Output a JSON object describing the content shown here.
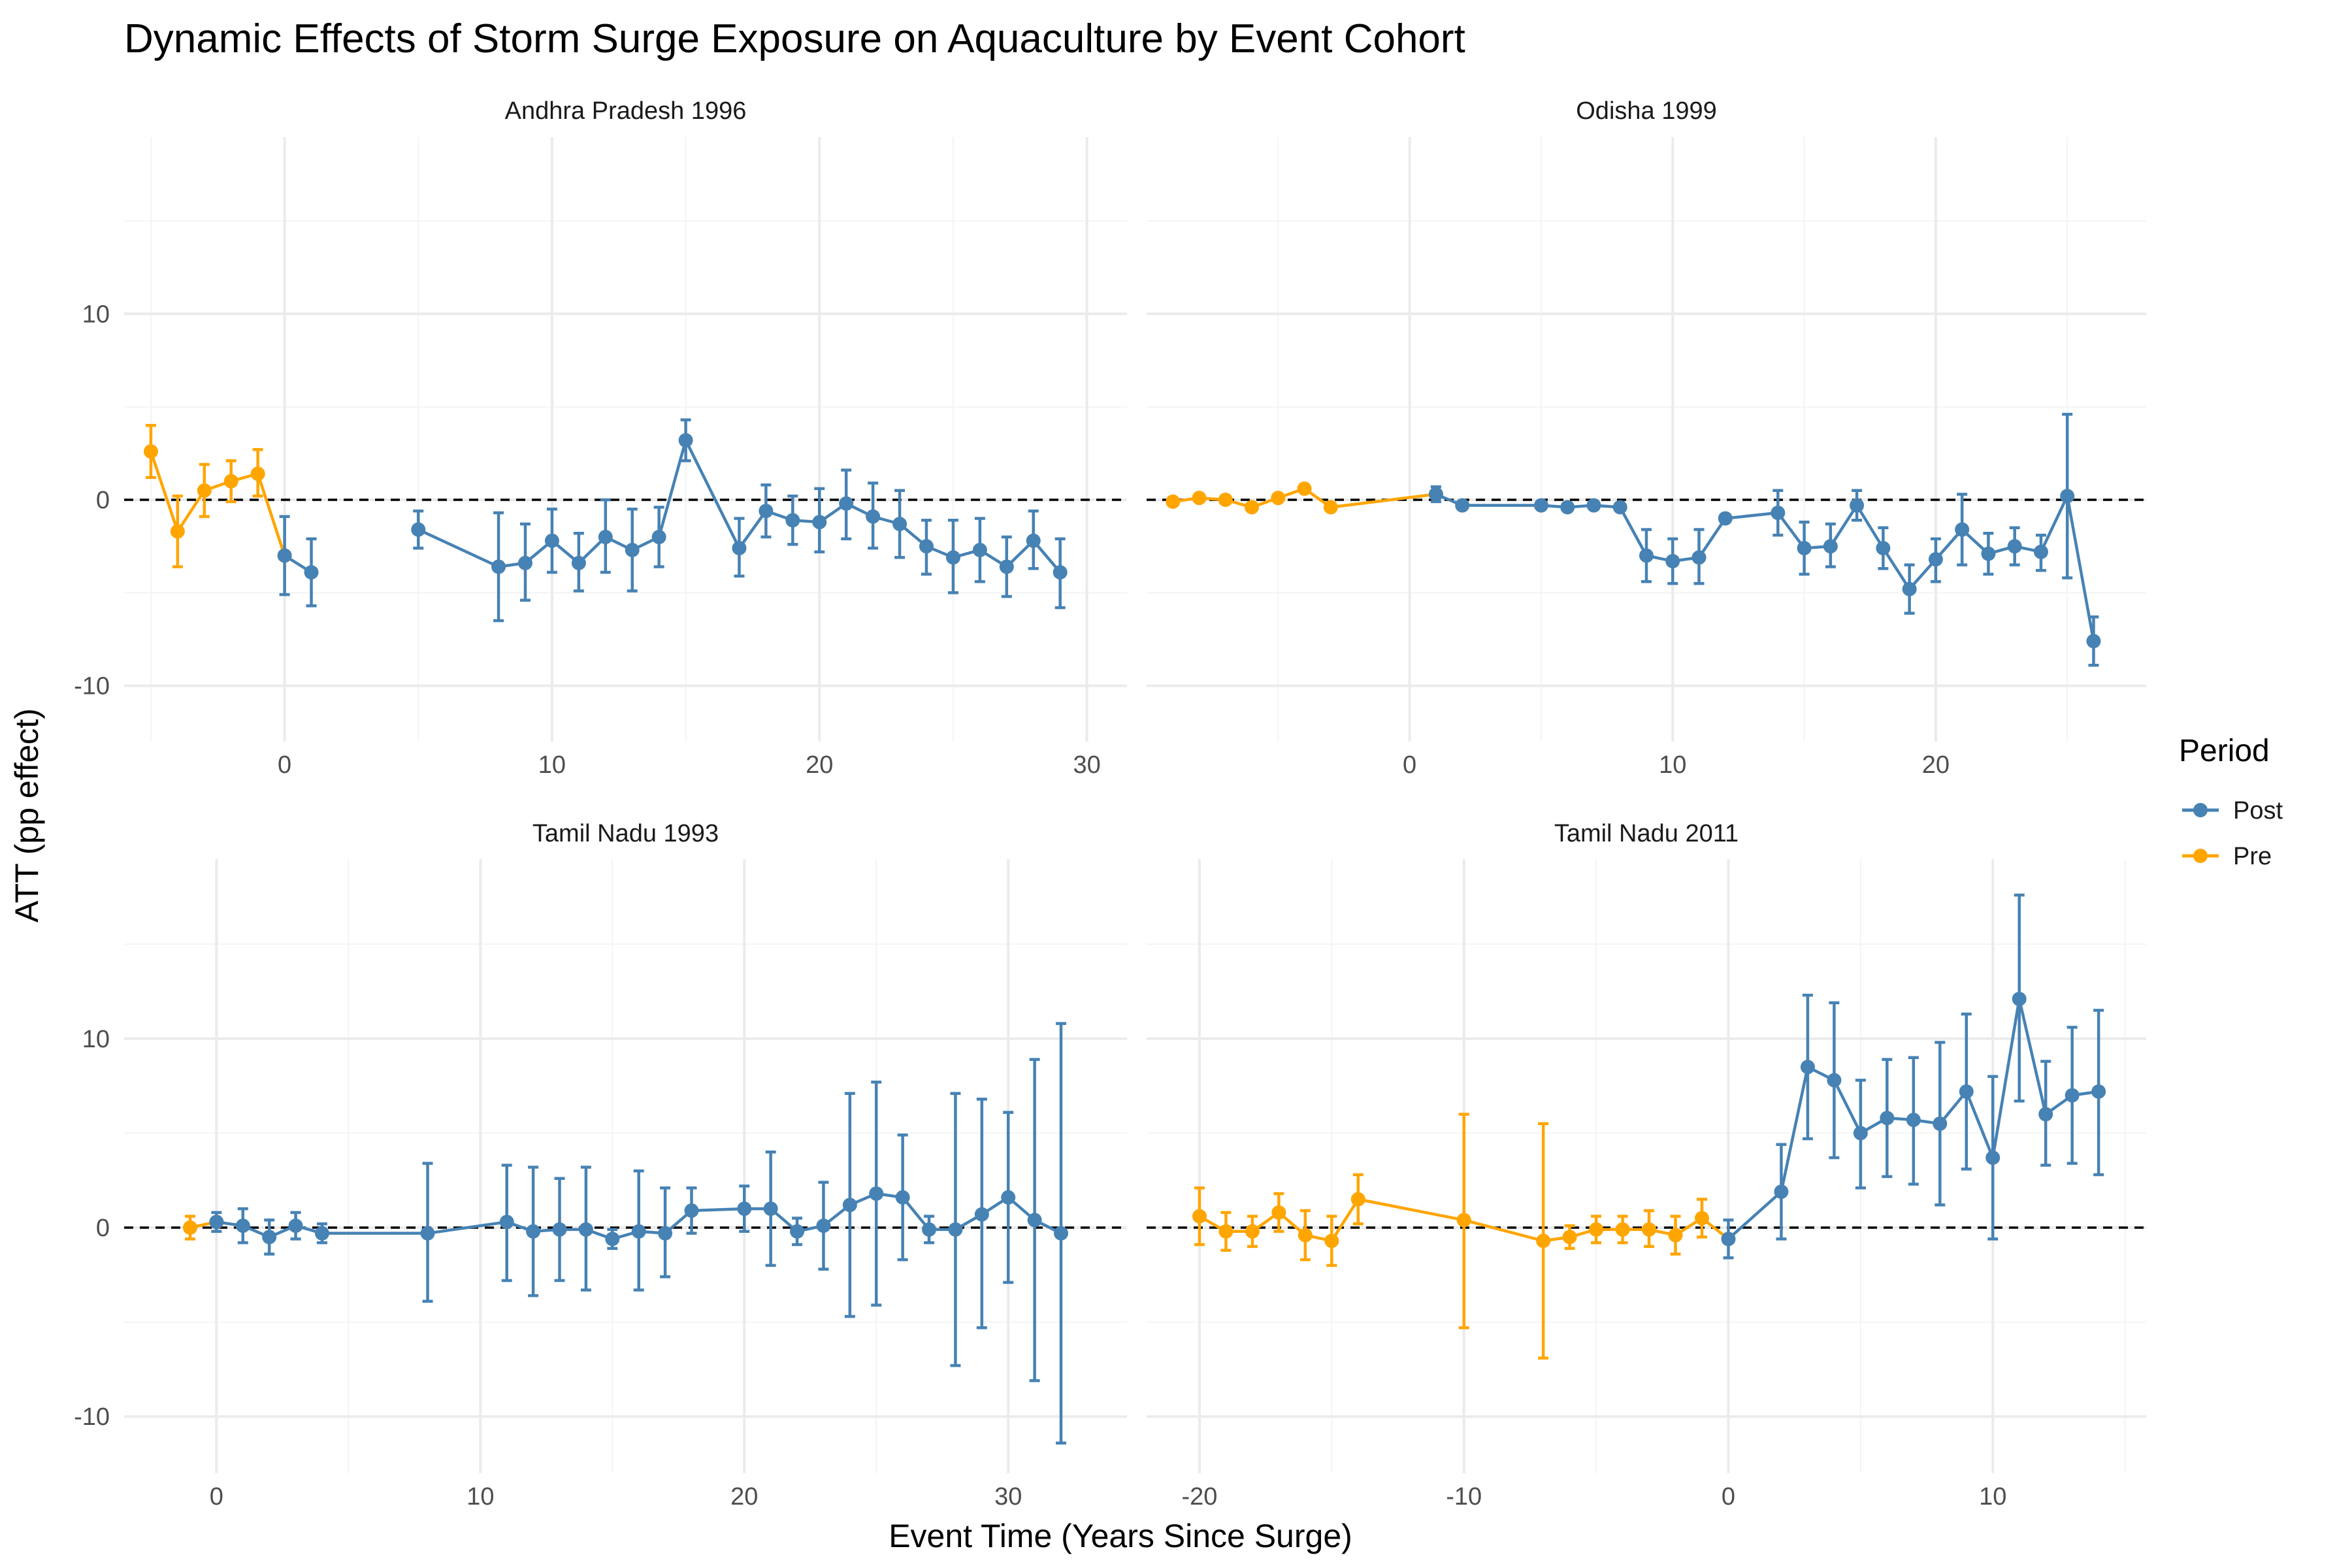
{
  "chart_data": {
    "type": "line",
    "title": "Dynamic Effects of Storm Surge Exposure on Aquaculture by Event Cohort",
    "xlabel": "Event Time (Years Since Surge)",
    "ylabel": "ATT (pp effect)",
    "legend": {
      "title": "Period",
      "placement": "right",
      "entries": [
        {
          "label": "Post",
          "color": "#4682B4"
        },
        {
          "label": "Pre",
          "color": "#FFA500"
        }
      ]
    },
    "reference_line_y": 0,
    "grid": true,
    "ylim": [
      -13,
      19.5
    ],
    "y_ticks": [
      -10,
      0,
      10
    ],
    "y_tick_labels": [
      "-10",
      "0",
      "10"
    ],
    "panels": [
      {
        "title": "Andhra Pradesh 1996",
        "xlim": [
          -6,
          31.5
        ],
        "x_ticks": [
          0,
          10,
          20,
          30
        ],
        "x_tick_labels": [
          "0",
          "10",
          "20",
          "30"
        ],
        "series": [
          {
            "name": "Pre",
            "points": [
              {
                "x": -5,
                "y": 2.6,
                "lo": 1.2,
                "hi": 4.0
              },
              {
                "x": -4,
                "y": -1.7,
                "lo": -3.6,
                "hi": 0.2
              },
              {
                "x": -3,
                "y": 0.5,
                "lo": -0.9,
                "hi": 1.9
              },
              {
                "x": -2,
                "y": 1.0,
                "lo": -0.1,
                "hi": 2.1
              },
              {
                "x": -1,
                "y": 1.4,
                "lo": 0.2,
                "hi": 2.7
              },
              {
                "x": 0,
                "y": -3.0,
                "lo": null,
                "hi": null
              }
            ]
          },
          {
            "name": "Post",
            "segments": [
              [
                {
                  "x": 0,
                  "y": -3.0,
                  "lo": -5.1,
                  "hi": -0.9
                },
                {
                  "x": 1,
                  "y": -3.9,
                  "lo": -5.7,
                  "hi": -2.1
                }
              ],
              [
                {
                  "x": 5,
                  "y": -1.6,
                  "lo": -2.6,
                  "hi": -0.6
                },
                {
                  "x": 8,
                  "y": -3.6,
                  "lo": -6.5,
                  "hi": -0.7
                },
                {
                  "x": 9,
                  "y": -3.4,
                  "lo": -5.4,
                  "hi": -1.3
                },
                {
                  "x": 10,
                  "y": -2.2,
                  "lo": -3.9,
                  "hi": -0.5
                },
                {
                  "x": 11,
                  "y": -3.4,
                  "lo": -4.9,
                  "hi": -1.8
                },
                {
                  "x": 12,
                  "y": -2.0,
                  "lo": -3.9,
                  "hi": 0.0
                },
                {
                  "x": 13,
                  "y": -2.7,
                  "lo": -4.9,
                  "hi": -0.5
                },
                {
                  "x": 14,
                  "y": -2.0,
                  "lo": -3.6,
                  "hi": -0.4
                },
                {
                  "x": 15,
                  "y": 3.2,
                  "lo": 2.1,
                  "hi": 4.3
                },
                {
                  "x": 17,
                  "y": -2.6,
                  "lo": -4.1,
                  "hi": -1.0
                },
                {
                  "x": 18,
                  "y": -0.6,
                  "lo": -2.0,
                  "hi": 0.8
                },
                {
                  "x": 19,
                  "y": -1.1,
                  "lo": -2.4,
                  "hi": 0.2
                },
                {
                  "x": 20,
                  "y": -1.2,
                  "lo": -2.8,
                  "hi": 0.6
                },
                {
                  "x": 21,
                  "y": -0.2,
                  "lo": -2.1,
                  "hi": 1.6
                },
                {
                  "x": 22,
                  "y": -0.9,
                  "lo": -2.6,
                  "hi": 0.9
                },
                {
                  "x": 23,
                  "y": -1.3,
                  "lo": -3.1,
                  "hi": 0.5
                },
                {
                  "x": 24,
                  "y": -2.5,
                  "lo": -4.0,
                  "hi": -1.1
                },
                {
                  "x": 25,
                  "y": -3.1,
                  "lo": -5.0,
                  "hi": -1.1
                },
                {
                  "x": 26,
                  "y": -2.7,
                  "lo": -4.4,
                  "hi": -1.0
                },
                {
                  "x": 27,
                  "y": -3.6,
                  "lo": -5.2,
                  "hi": -2.0
                },
                {
                  "x": 28,
                  "y": -2.2,
                  "lo": -3.7,
                  "hi": -0.6
                },
                {
                  "x": 29,
                  "y": -3.9,
                  "lo": -5.8,
                  "hi": -2.1
                }
              ]
            ]
          }
        ]
      },
      {
        "title": "Odisha 1999",
        "xlim": [
          -10,
          28
        ],
        "x_ticks": [
          0,
          10,
          20
        ],
        "x_tick_labels": [
          "0",
          "10",
          "20"
        ],
        "series": [
          {
            "name": "Pre",
            "points": [
              {
                "x": -9,
                "y": -0.1,
                "lo": null,
                "hi": null
              },
              {
                "x": -8,
                "y": 0.1,
                "lo": null,
                "hi": null
              },
              {
                "x": -7,
                "y": 0.0,
                "lo": null,
                "hi": null
              },
              {
                "x": -6,
                "y": -0.4,
                "lo": null,
                "hi": null
              },
              {
                "x": -5,
                "y": 0.1,
                "lo": null,
                "hi": null
              },
              {
                "x": -4,
                "y": 0.6,
                "lo": null,
                "hi": null
              },
              {
                "x": -3,
                "y": -0.4,
                "lo": null,
                "hi": null
              },
              {
                "x": 1,
                "y": 0.3,
                "lo": null,
                "hi": null
              }
            ]
          },
          {
            "name": "Post",
            "points": [
              {
                "x": 1,
                "y": 0.3,
                "lo": -0.1,
                "hi": 0.7
              },
              {
                "x": 2,
                "y": -0.3,
                "lo": null,
                "hi": null
              },
              {
                "x": 5,
                "y": -0.3,
                "lo": null,
                "hi": null
              },
              {
                "x": 6,
                "y": -0.4,
                "lo": null,
                "hi": null
              },
              {
                "x": 7,
                "y": -0.3,
                "lo": null,
                "hi": null
              },
              {
                "x": 8,
                "y": -0.4,
                "lo": null,
                "hi": null
              },
              {
                "x": 9,
                "y": -3.0,
                "lo": -4.4,
                "hi": -1.6
              },
              {
                "x": 10,
                "y": -3.3,
                "lo": -4.5,
                "hi": -2.1
              },
              {
                "x": 11,
                "y": -3.1,
                "lo": -4.5,
                "hi": -1.6
              },
              {
                "x": 12,
                "y": -1.0,
                "lo": null,
                "hi": null
              },
              {
                "x": 14,
                "y": -0.7,
                "lo": -1.9,
                "hi": 0.5
              },
              {
                "x": 15,
                "y": -2.6,
                "lo": -4.0,
                "hi": -1.2
              },
              {
                "x": 16,
                "y": -2.5,
                "lo": -3.6,
                "hi": -1.3
              },
              {
                "x": 17,
                "y": -0.3,
                "lo": -1.1,
                "hi": 0.5
              },
              {
                "x": 18,
                "y": -2.6,
                "lo": -3.7,
                "hi": -1.5
              },
              {
                "x": 19,
                "y": -4.8,
                "lo": -6.1,
                "hi": -3.5
              },
              {
                "x": 20,
                "y": -3.2,
                "lo": -4.4,
                "hi": -2.1
              },
              {
                "x": 21,
                "y": -1.6,
                "lo": -3.5,
                "hi": 0.3
              },
              {
                "x": 22,
                "y": -2.9,
                "lo": -4.0,
                "hi": -1.8
              },
              {
                "x": 23,
                "y": -2.5,
                "lo": -3.5,
                "hi": -1.5
              },
              {
                "x": 24,
                "y": -2.8,
                "lo": -3.8,
                "hi": -1.9
              },
              {
                "x": 25,
                "y": 0.2,
                "lo": -4.2,
                "hi": 4.6
              },
              {
                "x": 26,
                "y": -7.6,
                "lo": -8.9,
                "hi": -6.3
              }
            ]
          }
        ]
      },
      {
        "title": "Tamil Nadu 1993",
        "xlim": [
          -3.5,
          34.5
        ],
        "x_ticks": [
          0,
          10,
          20,
          30
        ],
        "x_tick_labels": [
          "0",
          "10",
          "20",
          "30"
        ],
        "series": [
          {
            "name": "Pre",
            "points": [
              {
                "x": -1,
                "y": 0.0,
                "lo": -0.6,
                "hi": 0.6
              },
              {
                "x": 0,
                "y": 0.3,
                "lo": null,
                "hi": null
              }
            ]
          },
          {
            "name": "Post",
            "points": [
              {
                "x": 0,
                "y": 0.3,
                "lo": -0.2,
                "hi": 0.8
              },
              {
                "x": 1,
                "y": 0.1,
                "lo": -0.8,
                "hi": 1.0
              },
              {
                "x": 2,
                "y": -0.5,
                "lo": -1.4,
                "hi": 0.4
              },
              {
                "x": 3,
                "y": 0.1,
                "lo": -0.6,
                "hi": 0.8
              },
              {
                "x": 4,
                "y": -0.3,
                "lo": -0.8,
                "hi": 0.2
              },
              {
                "x": 8,
                "y": -0.3,
                "lo": -3.9,
                "hi": 3.4
              },
              {
                "x": 11,
                "y": 0.3,
                "lo": -2.8,
                "hi": 3.3
              },
              {
                "x": 12,
                "y": -0.2,
                "lo": -3.6,
                "hi": 3.2
              },
              {
                "x": 13,
                "y": -0.1,
                "lo": -2.8,
                "hi": 2.6
              },
              {
                "x": 14,
                "y": -0.1,
                "lo": -3.3,
                "hi": 3.2
              },
              {
                "x": 15,
                "y": -0.6,
                "lo": -1.1,
                "hi": -0.1
              },
              {
                "x": 16,
                "y": -0.2,
                "lo": -3.3,
                "hi": 3.0
              },
              {
                "x": 17,
                "y": -0.3,
                "lo": -2.6,
                "hi": 2.1
              },
              {
                "x": 18,
                "y": 0.9,
                "lo": -0.3,
                "hi": 2.1
              },
              {
                "x": 20,
                "y": 1.0,
                "lo": -0.2,
                "hi": 2.2
              },
              {
                "x": 21,
                "y": 1.0,
                "lo": -2.0,
                "hi": 4.0
              },
              {
                "x": 22,
                "y": -0.2,
                "lo": -0.9,
                "hi": 0.5
              },
              {
                "x": 23,
                "y": 0.1,
                "lo": -2.2,
                "hi": 2.4
              },
              {
                "x": 24,
                "y": 1.2,
                "lo": -4.7,
                "hi": 7.1
              },
              {
                "x": 25,
                "y": 1.8,
                "lo": -4.1,
                "hi": 7.7
              },
              {
                "x": 26,
                "y": 1.6,
                "lo": -1.7,
                "hi": 4.9
              },
              {
                "x": 27,
                "y": -0.1,
                "lo": -0.8,
                "hi": 0.6
              },
              {
                "x": 28,
                "y": -0.1,
                "lo": -7.3,
                "hi": 7.1
              },
              {
                "x": 29,
                "y": 0.7,
                "lo": -5.3,
                "hi": 6.8
              },
              {
                "x": 30,
                "y": 1.6,
                "lo": -2.9,
                "hi": 6.1
              },
              {
                "x": 31,
                "y": 0.4,
                "lo": -8.1,
                "hi": 8.9
              },
              {
                "x": 32,
                "y": -0.3,
                "lo": -11.4,
                "hi": 10.8
              }
            ]
          }
        ]
      },
      {
        "title": "Tamil Nadu 2011",
        "xlim": [
          -22,
          15.8
        ],
        "x_ticks": [
          -20,
          -10,
          0,
          10
        ],
        "x_tick_labels": [
          "-20",
          "-10",
          "0",
          "10"
        ],
        "series": [
          {
            "name": "Pre",
            "points": [
              {
                "x": -20,
                "y": 0.6,
                "lo": -0.9,
                "hi": 2.1
              },
              {
                "x": -19,
                "y": -0.2,
                "lo": -1.2,
                "hi": 0.8
              },
              {
                "x": -18,
                "y": -0.2,
                "lo": -1.0,
                "hi": 0.6
              },
              {
                "x": -17,
                "y": 0.8,
                "lo": -0.2,
                "hi": 1.8
              },
              {
                "x": -16,
                "y": -0.4,
                "lo": -1.7,
                "hi": 0.9
              },
              {
                "x": -15,
                "y": -0.7,
                "lo": -2.0,
                "hi": 0.6
              },
              {
                "x": -14,
                "y": 1.5,
                "lo": 0.2,
                "hi": 2.8
              },
              {
                "x": -10,
                "y": 0.4,
                "lo": -5.3,
                "hi": 6.0
              },
              {
                "x": -7,
                "y": -0.7,
                "lo": -6.9,
                "hi": 5.5
              },
              {
                "x": -6,
                "y": -0.5,
                "lo": -1.1,
                "hi": 0.1
              },
              {
                "x": -5,
                "y": -0.1,
                "lo": -0.8,
                "hi": 0.6
              },
              {
                "x": -4,
                "y": -0.1,
                "lo": -0.8,
                "hi": 0.6
              },
              {
                "x": -3,
                "y": -0.1,
                "lo": -1.0,
                "hi": 0.9
              },
              {
                "x": -2,
                "y": -0.4,
                "lo": -1.4,
                "hi": 0.6
              },
              {
                "x": -1,
                "y": 0.5,
                "lo": -0.5,
                "hi": 1.5
              },
              {
                "x": 0,
                "y": -0.6,
                "lo": null,
                "hi": null
              }
            ]
          },
          {
            "name": "Post",
            "points": [
              {
                "x": 0,
                "y": -0.6,
                "lo": -1.6,
                "hi": 0.4
              },
              {
                "x": 2,
                "y": 1.9,
                "lo": -0.6,
                "hi": 4.4
              },
              {
                "x": 3,
                "y": 8.5,
                "lo": 4.7,
                "hi": 12.3
              },
              {
                "x": 4,
                "y": 7.8,
                "lo": 3.7,
                "hi": 11.9
              },
              {
                "x": 5,
                "y": 5.0,
                "lo": 2.1,
                "hi": 7.8
              },
              {
                "x": 6,
                "y": 5.8,
                "lo": 2.7,
                "hi": 8.9
              },
              {
                "x": 7,
                "y": 5.7,
                "lo": 2.3,
                "hi": 9.0
              },
              {
                "x": 8,
                "y": 5.5,
                "lo": 1.2,
                "hi": 9.8
              },
              {
                "x": 9,
                "y": 7.2,
                "lo": 3.1,
                "hi": 11.3
              },
              {
                "x": 10,
                "y": 3.7,
                "lo": -0.6,
                "hi": 8.0
              },
              {
                "x": 11,
                "y": 12.1,
                "lo": 6.7,
                "hi": 17.6
              },
              {
                "x": 12,
                "y": 6.0,
                "lo": 3.3,
                "hi": 8.8
              },
              {
                "x": 13,
                "y": 7.0,
                "lo": 3.4,
                "hi": 10.6
              },
              {
                "x": 14,
                "y": 7.2,
                "lo": 2.8,
                "hi": 11.5
              }
            ]
          }
        ]
      }
    ]
  }
}
